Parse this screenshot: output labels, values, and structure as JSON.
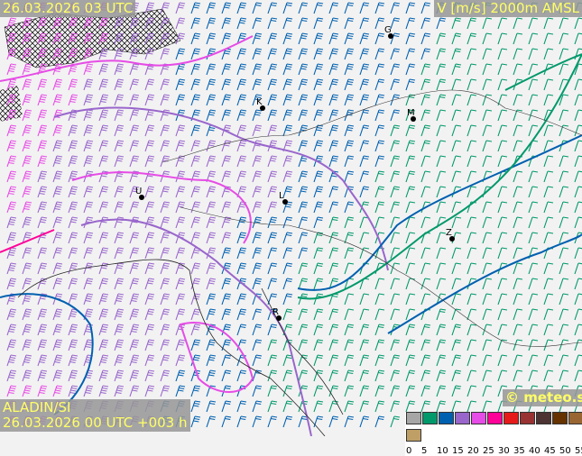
{
  "header": {
    "valid_time": "26.03.2026 03 UTC",
    "field": "V [m/s] 2000m AMSL"
  },
  "footer": {
    "model": "ALADIN/SI",
    "run": "26.03.2026 00 UTC +003 h",
    "copyright": "© meteo.si"
  },
  "legend": {
    "ticks": [
      "0",
      "5",
      "10",
      "15",
      "20",
      "25",
      "30",
      "35",
      "40",
      "45",
      "50",
      "55"
    ],
    "colors": [
      "#a6a6a6",
      "#00996b",
      "#0060b0",
      "#9966cc",
      "#e64ce6",
      "#ff0099",
      "#e61a1a",
      "#993333",
      "#4d3333",
      "#663300",
      "#996633",
      "#bf9f66"
    ]
  },
  "cities": [
    {
      "label": "G",
      "lon": 433,
      "lat": 40
    },
    {
      "label": "M",
      "lon": 458,
      "lat": 132
    },
    {
      "label": "K",
      "lon": 291,
      "lat": 120
    },
    {
      "label": "U",
      "lon": 157,
      "lat": 219
    },
    {
      "label": "L",
      "lon": 316,
      "lat": 224
    },
    {
      "label": "Z",
      "lon": 501,
      "lat": 265
    },
    {
      "label": "R",
      "lon": 309,
      "lat": 353
    }
  ]
}
